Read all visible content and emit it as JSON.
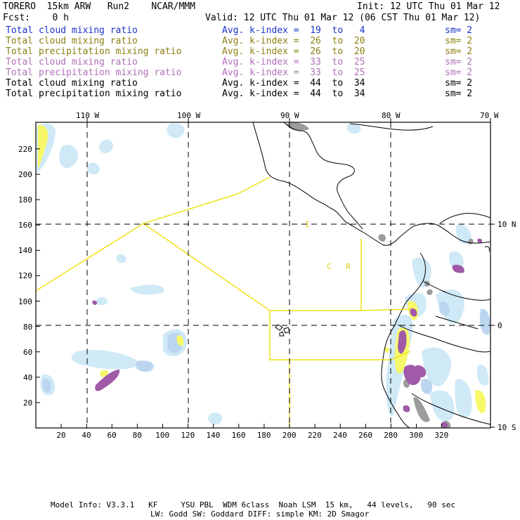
{
  "header": {
    "model": "TORERO  15km ARW   Run2    NCAR/MMM",
    "init": "Init: 12 UTC Thu 01 Mar 12",
    "fcst": "Fcst:    0 h",
    "valid": "Valid: 12 UTC Thu 01 Mar 12 (06 CST Thu 01 Mar 12)"
  },
  "legend": [
    {
      "field": "Total cloud mixing ratio",
      "index": "Avg. k-index =  19  to   4",
      "sm": "sm= 2",
      "color": "#1a33cc"
    },
    {
      "field": "Total cloud mixing ratio",
      "index": "Avg. k-index =  26  to  20",
      "sm": "sm= 2",
      "color": "#8c7f10"
    },
    {
      "field": "Total precipitation mixing ratio",
      "index": "Avg. k-index =  26  to  20",
      "sm": "sm= 2",
      "color": "#8c7f10"
    },
    {
      "field": "Total cloud mixing ratio",
      "index": "Avg. k-index =  33  to  25",
      "sm": "sm= 2",
      "color": "#b070b8"
    },
    {
      "field": "Total precipitation mixing ratio",
      "index": "Avg. k-index =  33  to  25",
      "sm": "sm= 2",
      "color": "#b070b8"
    },
    {
      "field": "Total cloud mixing ratio",
      "index": "Avg. k-index =  44  to  34",
      "sm": "sm= 2",
      "color": "#000000"
    },
    {
      "field": "Total precipitation mixing ratio",
      "index": "Avg. k-index =  44  to  34",
      "sm": "sm= 2",
      "color": "#000000"
    }
  ],
  "map": {
    "lon_labels": [
      "110 W",
      "100 W",
      "90 W",
      "80 W",
      "70 W"
    ],
    "lat_labels": [
      "10 N",
      "0",
      "10 S"
    ],
    "x_ticks": [
      "20",
      "40",
      "60",
      "80",
      "100",
      "120",
      "140",
      "160",
      "180",
      "200",
      "220",
      "240",
      "260",
      "280",
      "300",
      "320"
    ],
    "y_ticks": [
      "220",
      "200",
      "180",
      "160",
      "140",
      "120",
      "100",
      "80",
      "60",
      "40",
      "20"
    ],
    "region_labels": [
      "I",
      "C",
      "R"
    ],
    "colors": {
      "cloud_low": "#cfe9f7",
      "cloud_mid": "#bcd6f0",
      "precip_yellow": "#f7f76a",
      "purple": "#a05aa8",
      "gray": "#9c9c9c",
      "box": "#f0e11a"
    }
  },
  "footer": {
    "line1": "Model Info: V3.3.1   KF     YSU PBL  WDM 6class  Noah LSM  15 km,   44 levels,   90 sec",
    "line2": "LW: Godd SW: Goddard DIFF: simple KM: 2D Smagor"
  }
}
